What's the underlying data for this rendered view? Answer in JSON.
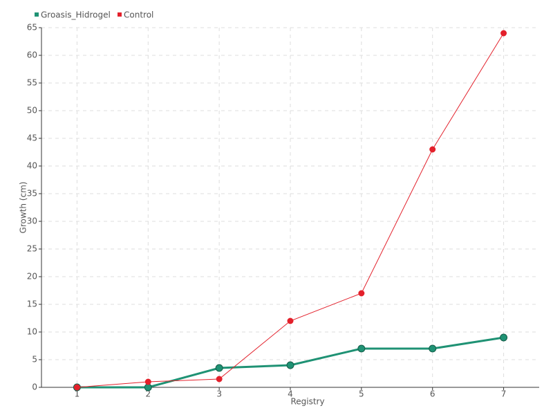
{
  "chart_data": {
    "type": "line",
    "xlabel": "Registry",
    "ylabel": "Growth (cm)",
    "x": [
      1,
      2,
      3,
      4,
      5,
      6,
      7
    ],
    "series": [
      {
        "name": "Groasis_Hidrogel",
        "color": "#1f9274",
        "values": [
          0,
          0,
          3.5,
          4,
          7,
          7,
          9
        ]
      },
      {
        "name": "Control",
        "color": "#e3202b",
        "values": [
          0,
          1,
          1.5,
          12,
          17,
          43,
          64
        ]
      }
    ],
    "xlim": [
      0.5,
      7.5
    ],
    "xticks": [
      1,
      2,
      3,
      4,
      5,
      6,
      7
    ],
    "ylim": [
      0,
      65
    ],
    "yticks": [
      0,
      5,
      10,
      15,
      20,
      25,
      30,
      35,
      40,
      45,
      50,
      55,
      60,
      65
    ],
    "grid": true,
    "legend": "top-left"
  }
}
